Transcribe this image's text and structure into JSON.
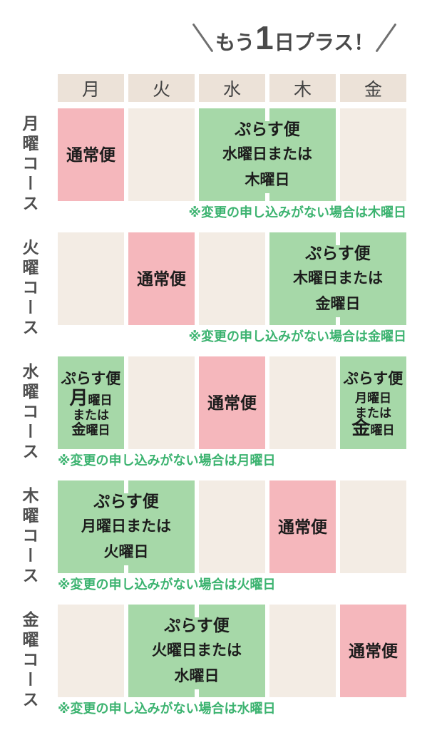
{
  "title": {
    "prefix": "もう",
    "number": "1",
    "suffix": "日プラス！"
  },
  "colors": {
    "normal_cell": "#f5b7bc",
    "plus_cell": "#a6d8a8",
    "empty_cell": "#f3ece4",
    "header_cell": "#ece2d8",
    "note_text": "#3cb370",
    "cell_text": "#1c1c1c",
    "title_text": "#4a4a4a"
  },
  "schedule": {
    "day_headers": [
      "月",
      "火",
      "水",
      "木",
      "金"
    ],
    "rows": [
      {
        "course": "月曜コース",
        "note": "※変更の申し込みがない場合は木曜日",
        "note_align": "right",
        "cells": [
          {
            "kind": "normal",
            "span": 1,
            "lines": [
              {
                "style": "hd",
                "segs": [
                  {
                    "t": "通常便"
                  }
                ]
              }
            ]
          },
          {
            "kind": "empty",
            "span": 1
          },
          {
            "kind": "plus",
            "span": 2,
            "lines": [
              {
                "style": "hd",
                "segs": [
                  {
                    "t": "ぷらす便"
                  }
                ]
              },
              {
                "style": "ln",
                "segs": [
                  {
                    "t": "水曜日または"
                  }
                ]
              },
              {
                "style": "ln",
                "segs": [
                  {
                    "t": "木曜日"
                  }
                ]
              }
            ]
          },
          {
            "kind": "empty",
            "span": 1
          }
        ]
      },
      {
        "course": "火曜コース",
        "note": "※変更の申し込みがない場合は金曜日",
        "note_align": "right",
        "cells": [
          {
            "kind": "empty",
            "span": 1
          },
          {
            "kind": "normal",
            "span": 1,
            "lines": [
              {
                "style": "hd",
                "segs": [
                  {
                    "t": "通常便"
                  }
                ]
              }
            ]
          },
          {
            "kind": "empty",
            "span": 1
          },
          {
            "kind": "plus",
            "span": 2,
            "lines": [
              {
                "style": "hd",
                "segs": [
                  {
                    "t": "ぷらす便"
                  }
                ]
              },
              {
                "style": "ln",
                "segs": [
                  {
                    "t": "木曜日または"
                  }
                ]
              },
              {
                "style": "ln",
                "segs": [
                  {
                    "t": "金曜日"
                  }
                ]
              }
            ]
          }
        ]
      },
      {
        "course": "水曜コース",
        "note": "※変更の申し込みがない場合は月曜日",
        "note_align": "left",
        "cells": [
          {
            "kind": "plus",
            "span": 1,
            "small": true,
            "lines": [
              {
                "style": "hd",
                "segs": [
                  {
                    "t": "ぷらす便"
                  }
                ]
              },
              {
                "style": "sm",
                "segs": [
                  {
                    "t": "月",
                    "em": "hi"
                  },
                  {
                    "t": "曜日"
                  }
                ]
              },
              {
                "style": "sm",
                "segs": [
                  {
                    "t": "または"
                  }
                ]
              },
              {
                "style": "sm",
                "segs": [
                  {
                    "t": "金",
                    "em": "md"
                  },
                  {
                    "t": "曜日"
                  }
                ]
              }
            ]
          },
          {
            "kind": "empty",
            "span": 1
          },
          {
            "kind": "normal",
            "span": 1,
            "lines": [
              {
                "style": "hd",
                "segs": [
                  {
                    "t": "通常便"
                  }
                ]
              }
            ]
          },
          {
            "kind": "empty",
            "span": 1
          },
          {
            "kind": "plus",
            "span": 1,
            "small": true,
            "lines": [
              {
                "style": "hd",
                "segs": [
                  {
                    "t": "ぷらす便"
                  }
                ]
              },
              {
                "style": "sm",
                "segs": [
                  {
                    "t": "月曜日"
                  }
                ]
              },
              {
                "style": "sm",
                "segs": [
                  {
                    "t": "または"
                  }
                ]
              },
              {
                "style": "sm",
                "segs": [
                  {
                    "t": "金",
                    "em": "hi"
                  },
                  {
                    "t": "曜日"
                  }
                ]
              }
            ]
          }
        ]
      },
      {
        "course": "木曜コース",
        "note": "※変更の申し込みがない場合は火曜日",
        "note_align": "left",
        "cells": [
          {
            "kind": "plus",
            "span": 2,
            "lines": [
              {
                "style": "hd",
                "segs": [
                  {
                    "t": "ぷらす便"
                  }
                ]
              },
              {
                "style": "ln",
                "segs": [
                  {
                    "t": "月曜日または"
                  }
                ]
              },
              {
                "style": "ln",
                "segs": [
                  {
                    "t": "火曜日"
                  }
                ]
              }
            ]
          },
          {
            "kind": "empty",
            "span": 1
          },
          {
            "kind": "normal",
            "span": 1,
            "lines": [
              {
                "style": "hd",
                "segs": [
                  {
                    "t": "通常便"
                  }
                ]
              }
            ]
          },
          {
            "kind": "empty",
            "span": 1
          }
        ]
      },
      {
        "course": "金曜コース",
        "note": "※変更の申し込みがない場合は水曜日",
        "note_align": "left",
        "cells": [
          {
            "kind": "empty",
            "span": 1
          },
          {
            "kind": "plus",
            "span": 2,
            "lines": [
              {
                "style": "hd",
                "segs": [
                  {
                    "t": "ぷらす便"
                  }
                ]
              },
              {
                "style": "ln",
                "segs": [
                  {
                    "t": "火曜日または"
                  }
                ]
              },
              {
                "style": "ln",
                "segs": [
                  {
                    "t": "水曜日"
                  }
                ]
              }
            ]
          },
          {
            "kind": "empty",
            "span": 1
          },
          {
            "kind": "normal",
            "span": 1,
            "lines": [
              {
                "style": "hd",
                "segs": [
                  {
                    "t": "通常便"
                  }
                ]
              }
            ]
          }
        ]
      }
    ]
  }
}
